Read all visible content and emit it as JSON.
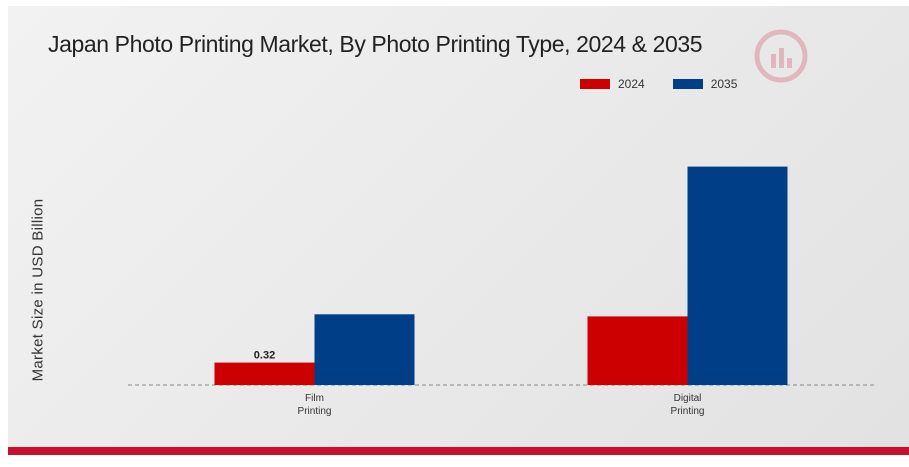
{
  "chart_data": {
    "type": "bar",
    "title": "Japan Photo Printing Market, By Photo Printing Type, 2024 & 2035",
    "ylabel": "Market Size in USD Billion",
    "xlabel": "",
    "categories": [
      "Film\nPrinting",
      "Digital\nPrinting"
    ],
    "series": [
      {
        "name": "2024",
        "color": "#cc0000",
        "values": [
          0.32,
          0.98
        ]
      },
      {
        "name": "2035",
        "color": "#003f87",
        "values": [
          1.01,
          3.12
        ]
      }
    ],
    "data_labels": [
      "0.32",
      null,
      null,
      null
    ],
    "ylim": [
      0,
      3.5
    ],
    "legend_position": "top-right",
    "grid": false,
    "baseline": "dashed"
  },
  "watermark_icon": "logo-icon"
}
